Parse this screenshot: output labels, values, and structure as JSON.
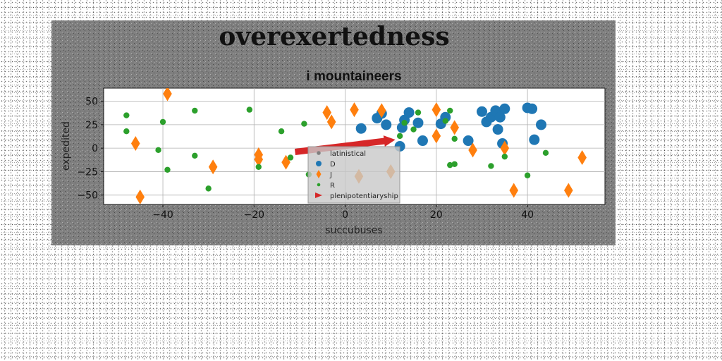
{
  "chart_data": {
    "type": "scatter",
    "suptitle": "overexertedness",
    "title": "i mountaineers",
    "xlabel": "succubuses",
    "ylabel": "expedited",
    "xlim": [
      -53,
      57
    ],
    "ylim": [
      -60,
      64
    ],
    "xticks": [
      -40,
      -20,
      0,
      20,
      40
    ],
    "yticks": [
      50,
      25,
      0,
      -25,
      -50
    ],
    "grid": true,
    "legend_placement": "lower-center",
    "series": [
      {
        "name": "latinistical",
        "marker": "circle",
        "color": "#7f7f7f",
        "points": []
      },
      {
        "name": "D",
        "marker": "circle",
        "color": "#1f77b4",
        "points": [
          [
            3.5,
            21
          ],
          [
            7,
            32
          ],
          [
            8,
            37
          ],
          [
            9,
            25
          ],
          [
            12,
            2
          ],
          [
            12.5,
            22
          ],
          [
            13,
            30
          ],
          [
            14,
            38
          ],
          [
            16,
            27
          ],
          [
            17,
            8
          ],
          [
            21,
            26
          ],
          [
            22,
            33
          ],
          [
            27,
            8
          ],
          [
            30,
            39
          ],
          [
            31,
            28
          ],
          [
            32,
            33
          ],
          [
            33,
            40
          ],
          [
            33.5,
            20
          ],
          [
            34,
            33
          ],
          [
            34.5,
            5
          ],
          [
            35,
            42
          ],
          [
            40,
            43
          ],
          [
            41,
            42
          ],
          [
            41.5,
            9
          ],
          [
            43,
            25
          ]
        ]
      },
      {
        "name": "J",
        "marker": "diamond",
        "color": "#ff7f0e",
        "points": [
          [
            -46,
            5
          ],
          [
            -45,
            -52
          ],
          [
            -39,
            58
          ],
          [
            -29,
            -20
          ],
          [
            -19,
            -7
          ],
          [
            -19,
            -12
          ],
          [
            -13,
            -15
          ],
          [
            -4,
            38
          ],
          [
            -3,
            28
          ],
          [
            2,
            41
          ],
          [
            3,
            -30
          ],
          [
            8,
            40
          ],
          [
            10,
            -25
          ],
          [
            20,
            41
          ],
          [
            20,
            13
          ],
          [
            24,
            22
          ],
          [
            28,
            -2
          ],
          [
            35,
            0
          ],
          [
            37,
            -45
          ],
          [
            49,
            -45
          ],
          [
            52,
            -10
          ]
        ]
      },
      {
        "name": "R",
        "marker": "circle",
        "color": "#2ca02c",
        "points": [
          [
            -48,
            35
          ],
          [
            -48,
            18
          ],
          [
            -41,
            -2
          ],
          [
            -40,
            28
          ],
          [
            -39,
            -23
          ],
          [
            -33,
            40
          ],
          [
            -33,
            -8
          ],
          [
            -30,
            -43
          ],
          [
            -21,
            41
          ],
          [
            -19,
            -20
          ],
          [
            -14,
            18
          ],
          [
            -12,
            -10
          ],
          [
            -9,
            26
          ],
          [
            -8,
            -28
          ],
          [
            12,
            13
          ],
          [
            13,
            27
          ],
          [
            15,
            20
          ],
          [
            16,
            38
          ],
          [
            22,
            29
          ],
          [
            23,
            40
          ],
          [
            23,
            -18
          ],
          [
            24,
            -17
          ],
          [
            24,
            10
          ],
          [
            32,
            -19
          ],
          [
            35,
            -9
          ],
          [
            40,
            -29
          ],
          [
            44,
            -5
          ]
        ]
      }
    ],
    "arrows": [
      {
        "name": "plenipotentiaryship",
        "color": "#d62728",
        "from": [
          -11,
          -4
        ],
        "to": [
          11,
          9
        ]
      }
    ]
  }
}
